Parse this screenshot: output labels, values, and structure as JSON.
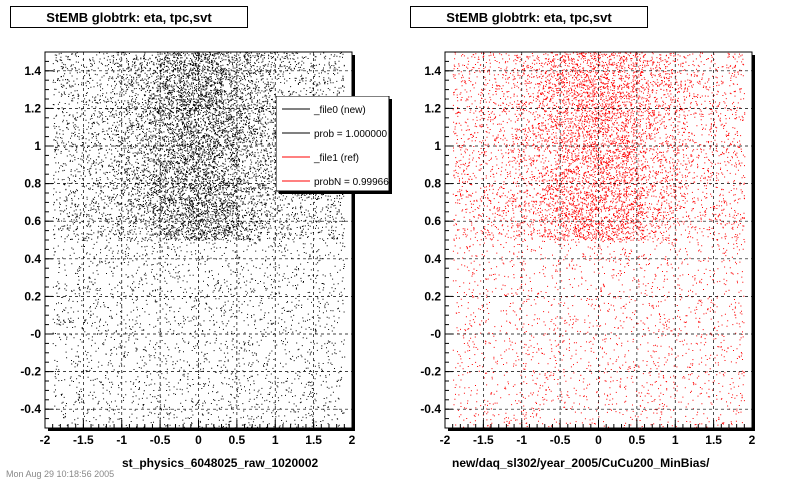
{
  "panels": [
    {
      "title": "StEMB globtrk: eta, tpc,svt",
      "xlabel": "st_physics_6048025_raw_1020002",
      "color": "#000000"
    },
    {
      "title": "StEMB globtrk: eta, tpc,svt",
      "xlabel": "new/daq_sl302/year_2005/CuCu200_MinBias/",
      "color": "#ff0000"
    }
  ],
  "legend": {
    "entries": [
      {
        "label": "_file0 (new)",
        "color": "#000000"
      },
      {
        "label": "prob = 1.000000",
        "color": "#000000"
      },
      {
        "label": "_file1 (ref)",
        "color": "#ff0000"
      },
      {
        "label": "probN = 0.99966",
        "color": "#ff0000"
      }
    ]
  },
  "footer_text": "Mon Aug 29 10:18:56 2005",
  "chart_data": [
    {
      "type": "scatter",
      "title": "StEMB globtrk: eta, tpc,svt",
      "xlabel": "st_physics_6048025_raw_1020002",
      "ylabel": "",
      "xlim": [
        -2,
        2
      ],
      "ylim": [
        -0.5,
        1.5
      ],
      "xticks": [
        -2,
        -1.5,
        -1,
        -0.5,
        0,
        0.5,
        1,
        1.5,
        2
      ],
      "yticks": [
        -0.4,
        -0.2,
        0,
        0.2,
        0.4,
        0.6,
        0.8,
        1,
        1.2,
        1.4
      ],
      "ytick_labels": [
        "-0.4",
        "-0.2",
        "-0",
        "0.2",
        "0.4",
        "0.6",
        "0.8",
        "1",
        "1.2",
        "1.4"
      ],
      "grid": true,
      "marker_color": "#000000",
      "regions": [
        {
          "x_range": [
            -1.9,
            1.9
          ],
          "y_range": [
            -0.5,
            0.5
          ],
          "relative_density": 0.25
        },
        {
          "x_range": [
            -1.9,
            1.9
          ],
          "y_range": [
            0.5,
            1.5
          ],
          "relative_density": 1.0
        }
      ]
    },
    {
      "type": "scatter",
      "title": "StEMB globtrk: eta, tpc,svt",
      "xlabel": "new/daq_sl302/year_2005/CuCu200_MinBias/",
      "ylabel": "",
      "xlim": [
        -2,
        2
      ],
      "ylim": [
        -0.5,
        1.5
      ],
      "xticks": [
        -2,
        -1.5,
        -1,
        -0.5,
        0,
        0.5,
        1,
        1.5,
        2
      ],
      "yticks": [
        -0.4,
        -0.2,
        0,
        0.2,
        0.4,
        0.6,
        0.8,
        1,
        1.2,
        1.4
      ],
      "ytick_labels": [
        "-0.4",
        "-0.2",
        "-0",
        "0.2",
        "0.4",
        "0.6",
        "0.8",
        "1",
        "1.2",
        "1.4"
      ],
      "grid": true,
      "marker_color": "#ff0000",
      "regions": [
        {
          "x_range": [
            -1.9,
            1.9
          ],
          "y_range": [
            -0.5,
            0.5
          ],
          "relative_density": 0.2
        },
        {
          "x_range": [
            -1.9,
            1.9
          ],
          "y_range": [
            0.5,
            1.5
          ],
          "relative_density": 0.8
        }
      ]
    }
  ]
}
